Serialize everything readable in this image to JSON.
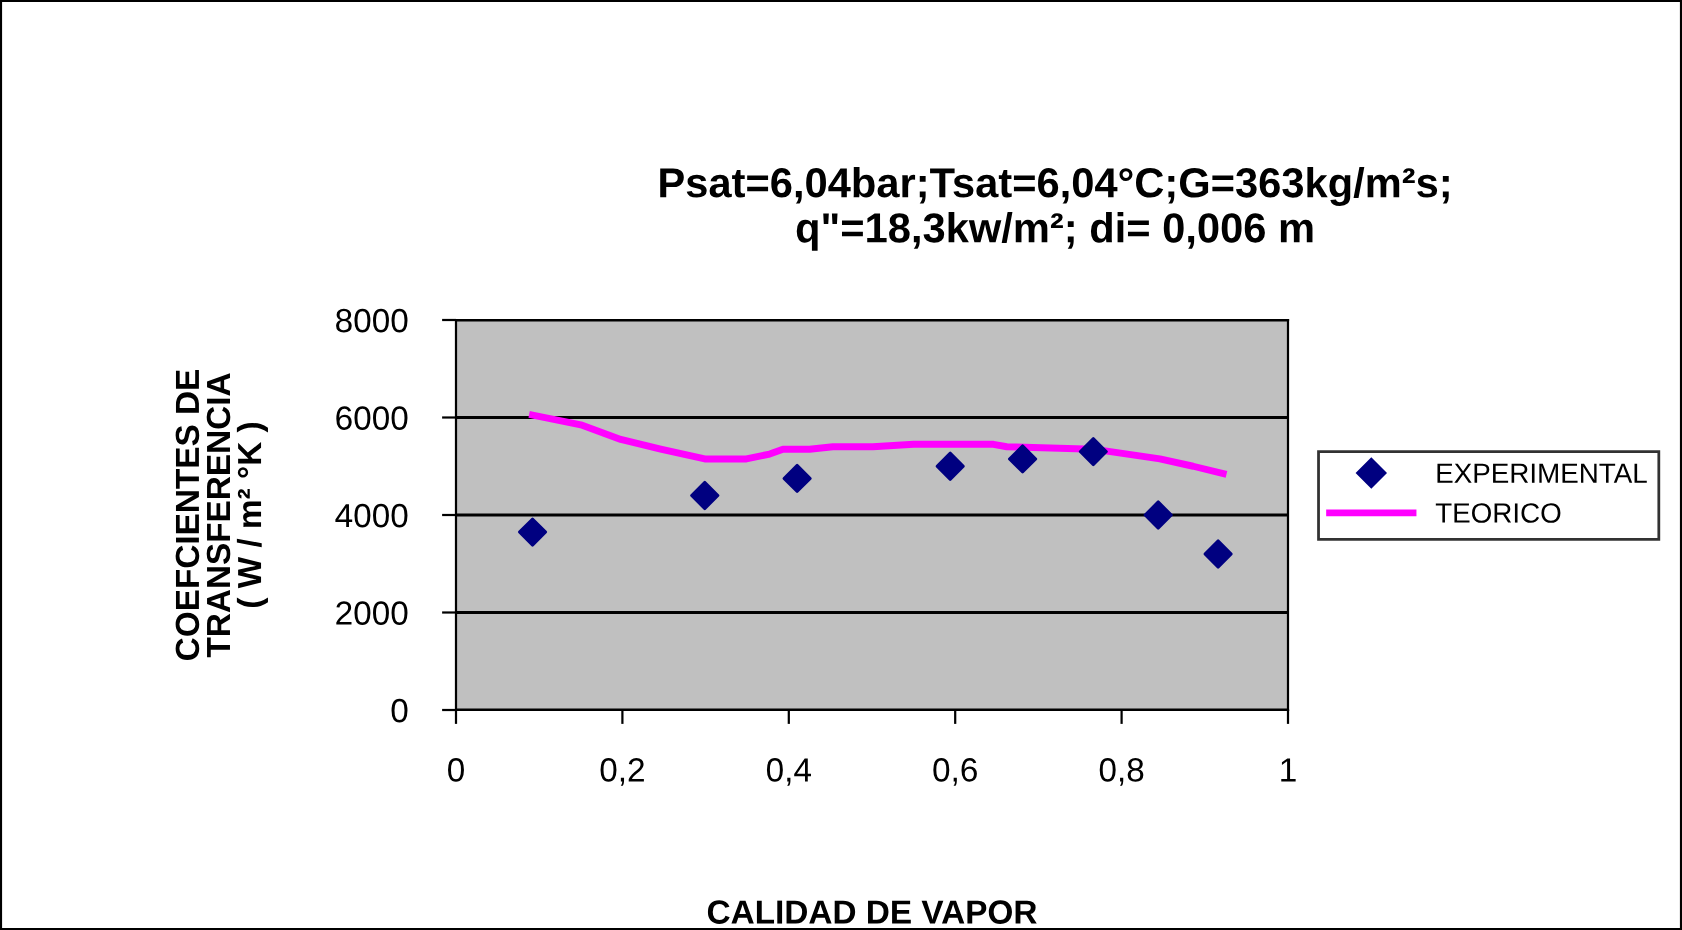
{
  "chart_data": {
    "type": "scatter",
    "title": "Psat=6,04bar;Tsat=6,04°C;G=363kg/m²s;\nq\"=18,3kw/m²; di= 0,006 m",
    "xlabel": "CALIDAD DE VAPOR",
    "ylabel": "COEFCIENTES DE\nTRANSFERENCIA\n( W / m² °K )",
    "series": [
      {
        "name": "EXPERIMENTAL",
        "color": "#000080",
        "marker": "diamond",
        "x": [
          0.092,
          0.299,
          0.41,
          0.594,
          0.681,
          0.766,
          0.844,
          0.916
        ],
        "values": [
          3650,
          4400,
          4750,
          5000,
          5150,
          5300,
          4000,
          3200
        ]
      },
      {
        "name": "TEORICO",
        "type": "line",
        "color": "#ff00ff",
        "marker": "none",
        "line_style": "solid",
        "x": [
          0.092,
          0.15,
          0.198,
          0.246,
          0.299,
          0.349,
          0.377,
          0.393,
          0.425,
          0.453,
          0.501,
          0.55,
          0.646,
          0.662,
          0.766,
          0.846,
          0.886,
          0.922
        ],
        "values": [
          6050,
          5850,
          5550,
          5350,
          5150,
          5150,
          5250,
          5350,
          5350,
          5400,
          5400,
          5450,
          5450,
          5400,
          5350,
          5150,
          5000,
          4850
        ]
      }
    ],
    "xlim": [
      0,
      1
    ],
    "xticks": [
      0,
      {
        "value": 0.2,
        "label": "0,2"
      },
      {
        "value": 0.4,
        "label": "0,4"
      },
      {
        "value": 0.6,
        "label": "0,6"
      },
      {
        "value": 0.8,
        "label": "0,8"
      },
      1
    ],
    "ylim": [
      0,
      8000
    ],
    "yticks": [
      0,
      2000,
      4000,
      6000,
      8000
    ],
    "grid": "y",
    "legend": "right"
  }
}
